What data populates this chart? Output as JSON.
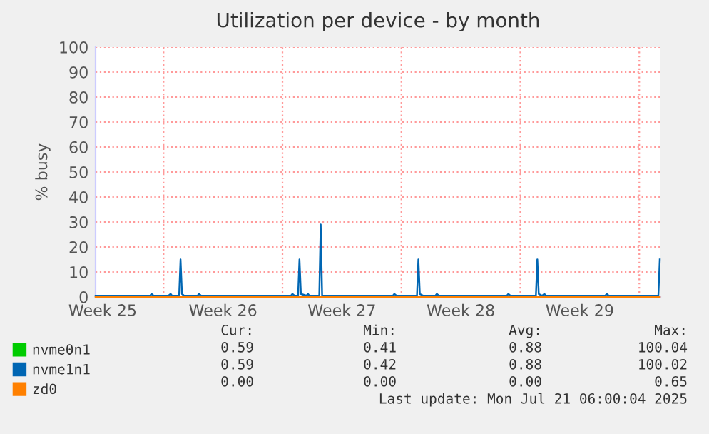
{
  "chart_data": {
    "type": "line",
    "title": "Utilization per device - by month",
    "ylabel": "% busy",
    "x": [
      "2025-06-18T00:00",
      "2025-06-21T05:00",
      "2025-06-21T07:00",
      "2025-06-21T10:00",
      "2025-06-22T07:00",
      "2025-06-22T10:00",
      "2025-06-22T12:00",
      "2025-06-22T22:00",
      "2025-06-23T00:00",
      "2025-06-23T02:00",
      "2025-06-23T05:00",
      "2025-06-24T00:00",
      "2025-06-24T02:00",
      "2025-06-24T05:00",
      "2025-06-29T12:00",
      "2025-06-29T14:00",
      "2025-06-29T17:00",
      "2025-06-29T22:00",
      "2025-06-30T00:00",
      "2025-06-30T02:00",
      "2025-06-30T10:00",
      "2025-06-30T12:00",
      "2025-06-30T14:00",
      "2025-07-01T04:00",
      "2025-07-01T06:00",
      "2025-07-01T08:00",
      "2025-07-05T12:00",
      "2025-07-05T14:00",
      "2025-07-05T17:00",
      "2025-07-06T22:00",
      "2025-07-07T00:00",
      "2025-07-07T02:00",
      "2025-07-07T07:00",
      "2025-07-08T00:00",
      "2025-07-08T02:00",
      "2025-07-08T05:00",
      "2025-07-12T05:00",
      "2025-07-12T07:00",
      "2025-07-12T10:00",
      "2025-07-13T22:00",
      "2025-07-14T00:00",
      "2025-07-14T02:00",
      "2025-07-14T07:00",
      "2025-07-14T10:00",
      "2025-07-14T12:00",
      "2025-07-18T00:00",
      "2025-07-18T02:00",
      "2025-07-18T05:00",
      "2025-07-21T03:00",
      "2025-07-21T05:00"
    ],
    "series": [
      {
        "name": "nvme0n1",
        "color": "#00cc00",
        "values": [
          null,
          null,
          null,
          null,
          null,
          null,
          null,
          null,
          null,
          null,
          null,
          null,
          null,
          null,
          null,
          null,
          null,
          null,
          null,
          null,
          null,
          null,
          null,
          null,
          null,
          null,
          null,
          null,
          null,
          null,
          null,
          null,
          null,
          null,
          null,
          null,
          null,
          null,
          null,
          null,
          null,
          null,
          null,
          null,
          null,
          null,
          null,
          null,
          null,
          null
        ]
      },
      {
        "name": "nvme1n1",
        "color": "#0066b3",
        "values": [
          0.5,
          0.5,
          1.2,
          0.5,
          0.5,
          1.2,
          0.5,
          0.5,
          15,
          1.2,
          0.5,
          0.5,
          1.2,
          0.5,
          0.5,
          1.2,
          0.5,
          0.5,
          15,
          1.2,
          0.5,
          1.2,
          0.5,
          0.5,
          29,
          0.5,
          0.5,
          1.2,
          0.5,
          0.5,
          15,
          1.2,
          0.5,
          0.5,
          1.2,
          0.5,
          0.5,
          1.2,
          0.5,
          0.5,
          15,
          1.2,
          0.5,
          1.2,
          0.5,
          0.5,
          1.2,
          0.5,
          0.5,
          15
        ]
      },
      {
        "name": "zd0",
        "color": "#ff8000",
        "values": [
          0,
          0,
          0,
          0,
          0,
          0,
          0,
          0,
          0,
          0,
          0,
          0,
          0,
          0,
          0,
          0,
          0,
          0,
          0,
          0,
          0,
          0,
          0,
          0,
          0,
          0,
          0,
          0,
          0,
          0,
          0,
          0,
          0,
          0,
          0,
          0,
          0,
          0,
          0,
          0,
          0,
          0,
          0,
          0,
          0,
          0,
          0,
          0,
          0,
          0
        ]
      }
    ],
    "xlim": [
      "2025-06-18T00:00",
      "2025-07-21T06:00"
    ],
    "xticks": [
      {
        "value": "2025-06-18T10:00",
        "label": "Week 25"
      },
      {
        "value": "2025-06-22",
        "label": null
      },
      {
        "value": "2025-06-25T12:00",
        "label": "Week 26"
      },
      {
        "value": "2025-06-29",
        "label": null
      },
      {
        "value": "2025-07-02T12:00",
        "label": "Week 27"
      },
      {
        "value": "2025-07-06",
        "label": null
      },
      {
        "value": "2025-07-09T12:00",
        "label": "Week 28"
      },
      {
        "value": "2025-07-13",
        "label": null
      },
      {
        "value": "2025-07-16T12:00",
        "label": "Week 29"
      },
      {
        "value": "2025-07-20",
        "label": null
      }
    ],
    "ylim": [
      0,
      100
    ],
    "yticks": [
      0,
      10,
      20,
      30,
      40,
      50,
      60,
      70,
      80,
      90,
      100
    ],
    "grid": true,
    "legend": "bottom",
    "marker": "none",
    "line_style": "solid",
    "annotations": [
      "Cur:",
      "Min:",
      "Avg:",
      "Max:",
      "0.59",
      "0.41",
      "0.88",
      "100.04",
      "0.59",
      "0.42",
      "0.88",
      "100.02",
      "0.00",
      "0.00",
      "0.00",
      "0.65",
      "Last update: Mon Jul 21 06:00:04 2025"
    ]
  }
}
